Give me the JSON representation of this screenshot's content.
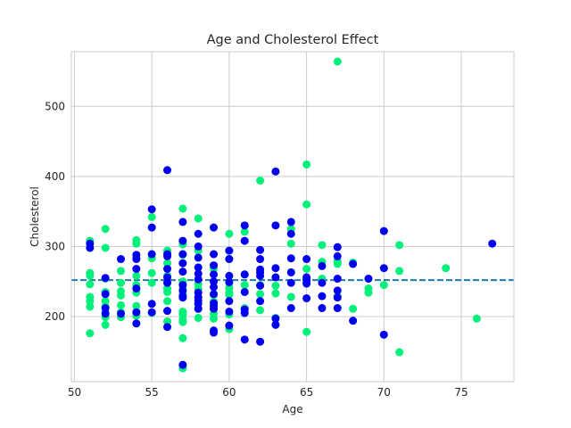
{
  "chart_data": {
    "type": "scatter",
    "title": "Age and Cholesterol Effect",
    "xlabel": "Age",
    "ylabel": "Cholesterol",
    "xlim": [
      49.8,
      78.4
    ],
    "ylim": [
      107,
      578
    ],
    "xticks": [
      50,
      55,
      60,
      65,
      70,
      75
    ],
    "yticks": [
      200,
      300,
      400,
      500
    ],
    "grid": true,
    "reference_line": {
      "y": 252,
      "color": "#1f77b4",
      "style": "dashed"
    },
    "colors": {
      "series_a": "#00f07a",
      "series_b": "#0000ee"
    },
    "series": [
      {
        "color": "#00f07a",
        "points": [
          [
            51,
            308
          ],
          [
            51,
            298
          ],
          [
            51,
            262
          ],
          [
            51,
            258
          ],
          [
            51,
            246
          ],
          [
            51,
            228
          ],
          [
            51,
            222
          ],
          [
            51,
            214
          ],
          [
            51,
            176
          ],
          [
            52,
            325
          ],
          [
            52,
            298
          ],
          [
            52,
            254
          ],
          [
            52,
            235
          ],
          [
            52,
            222
          ],
          [
            52,
            214
          ],
          [
            52,
            206
          ],
          [
            52,
            199
          ],
          [
            52,
            188
          ],
          [
            53,
            265
          ],
          [
            53,
            248
          ],
          [
            53,
            236
          ],
          [
            53,
            230
          ],
          [
            53,
            216
          ],
          [
            53,
            206
          ],
          [
            53,
            199
          ],
          [
            54,
            309
          ],
          [
            54,
            304
          ],
          [
            54,
            284
          ],
          [
            54,
            258
          ],
          [
            54,
            245
          ],
          [
            54,
            234
          ],
          [
            54,
            215
          ],
          [
            54,
            206
          ],
          [
            54,
            201
          ],
          [
            55,
            342
          ],
          [
            55,
            283
          ],
          [
            55,
            262
          ],
          [
            55,
            248
          ],
          [
            55,
            205
          ],
          [
            56,
            294
          ],
          [
            56,
            276
          ],
          [
            56,
            258
          ],
          [
            56,
            240
          ],
          [
            56,
            235
          ],
          [
            56,
            222
          ],
          [
            56,
            193
          ],
          [
            57,
            354
          ],
          [
            57,
            303
          ],
          [
            57,
            288
          ],
          [
            57,
            250
          ],
          [
            57,
            239
          ],
          [
            57,
            232
          ],
          [
            57,
            207
          ],
          [
            57,
            203
          ],
          [
            57,
            196
          ],
          [
            57,
            192
          ],
          [
            57,
            169
          ],
          [
            57,
            126
          ],
          [
            58,
            340
          ],
          [
            58,
            294
          ],
          [
            58,
            270
          ],
          [
            58,
            246
          ],
          [
            58,
            239
          ],
          [
            58,
            228
          ],
          [
            58,
            219
          ],
          [
            58,
            211
          ],
          [
            58,
            198
          ],
          [
            59,
            268
          ],
          [
            59,
            231
          ],
          [
            59,
            221
          ],
          [
            59,
            211
          ],
          [
            59,
            204
          ],
          [
            59,
            197
          ],
          [
            60,
            318
          ],
          [
            60,
            282
          ],
          [
            60,
            248
          ],
          [
            60,
            241
          ],
          [
            60,
            234
          ],
          [
            60,
            231
          ],
          [
            60,
            203
          ],
          [
            60,
            182
          ],
          [
            61,
            321
          ],
          [
            61,
            260
          ],
          [
            61,
            245
          ],
          [
            61,
            212
          ],
          [
            62,
            394
          ],
          [
            62,
            263
          ],
          [
            62,
            245
          ],
          [
            62,
            232
          ],
          [
            62,
            209
          ],
          [
            63,
            244
          ],
          [
            63,
            233
          ],
          [
            63,
            198
          ],
          [
            64,
            325
          ],
          [
            64,
            304
          ],
          [
            64,
            263
          ],
          [
            64,
            228
          ],
          [
            65,
            417
          ],
          [
            65,
            360
          ],
          [
            65,
            268
          ],
          [
            65,
            253
          ],
          [
            65,
            248
          ],
          [
            65,
            178
          ],
          [
            66,
            302
          ],
          [
            66,
            278
          ],
          [
            66,
            254
          ],
          [
            67,
            564
          ],
          [
            67,
            279
          ],
          [
            67,
            275
          ],
          [
            67,
            229
          ],
          [
            68,
            277
          ],
          [
            68,
            211
          ],
          [
            69,
            240
          ],
          [
            69,
            234
          ],
          [
            70,
            245
          ],
          [
            71,
            302
          ],
          [
            71,
            265
          ],
          [
            71,
            149
          ],
          [
            74,
            269
          ],
          [
            76,
            197
          ]
        ]
      },
      {
        "color": "#0000ee",
        "points": [
          [
            51,
            304
          ],
          [
            51,
            298
          ],
          [
            52,
            255
          ],
          [
            52,
            232
          ],
          [
            52,
            212
          ],
          [
            52,
            204
          ],
          [
            53,
            282
          ],
          [
            53,
            204
          ],
          [
            54,
            288
          ],
          [
            54,
            282
          ],
          [
            54,
            268
          ],
          [
            54,
            240
          ],
          [
            54,
            206
          ],
          [
            54,
            190
          ],
          [
            55,
            353
          ],
          [
            55,
            327
          ],
          [
            55,
            289
          ],
          [
            55,
            218
          ],
          [
            55,
            206
          ],
          [
            56,
            409
          ],
          [
            56,
            289
          ],
          [
            56,
            286
          ],
          [
            56,
            268
          ],
          [
            56,
            256
          ],
          [
            56,
            248
          ],
          [
            56,
            208
          ],
          [
            56,
            185
          ],
          [
            57,
            335
          ],
          [
            57,
            308
          ],
          [
            57,
            289
          ],
          [
            57,
            276
          ],
          [
            57,
            264
          ],
          [
            57,
            245
          ],
          [
            57,
            237
          ],
          [
            57,
            229
          ],
          [
            57,
            227
          ],
          [
            57,
            131
          ],
          [
            58,
            318
          ],
          [
            58,
            300
          ],
          [
            58,
            284
          ],
          [
            58,
            270
          ],
          [
            58,
            261
          ],
          [
            58,
            253
          ],
          [
            58,
            234
          ],
          [
            58,
            227
          ],
          [
            58,
            223
          ],
          [
            58,
            218
          ],
          [
            58,
            211
          ],
          [
            59,
            327
          ],
          [
            59,
            289
          ],
          [
            59,
            273
          ],
          [
            59,
            260
          ],
          [
            59,
            250
          ],
          [
            59,
            242
          ],
          [
            59,
            232
          ],
          [
            59,
            219
          ],
          [
            59,
            215
          ],
          [
            59,
            211
          ],
          [
            59,
            180
          ],
          [
            59,
            177
          ],
          [
            60,
            294
          ],
          [
            60,
            282
          ],
          [
            60,
            258
          ],
          [
            60,
            249
          ],
          [
            60,
            222
          ],
          [
            60,
            207
          ],
          [
            60,
            187
          ],
          [
            61,
            330
          ],
          [
            61,
            308
          ],
          [
            61,
            260
          ],
          [
            61,
            235
          ],
          [
            61,
            210
          ],
          [
            61,
            205
          ],
          [
            61,
            167
          ],
          [
            62,
            295
          ],
          [
            62,
            282
          ],
          [
            62,
            267
          ],
          [
            62,
            263
          ],
          [
            62,
            258
          ],
          [
            62,
            244
          ],
          [
            62,
            222
          ],
          [
            62,
            164
          ],
          [
            63,
            407
          ],
          [
            63,
            330
          ],
          [
            63,
            269
          ],
          [
            63,
            256
          ],
          [
            63,
            197
          ],
          [
            63,
            188
          ],
          [
            64,
            335
          ],
          [
            64,
            318
          ],
          [
            64,
            283
          ],
          [
            64,
            263
          ],
          [
            64,
            248
          ],
          [
            64,
            212
          ],
          [
            65,
            282
          ],
          [
            65,
            256
          ],
          [
            65,
            252
          ],
          [
            65,
            247
          ],
          [
            65,
            226
          ],
          [
            66,
            272
          ],
          [
            66,
            248
          ],
          [
            66,
            229
          ],
          [
            66,
            212
          ],
          [
            67,
            299
          ],
          [
            67,
            286
          ],
          [
            67,
            254
          ],
          [
            67,
            237
          ],
          [
            67,
            227
          ],
          [
            67,
            212
          ],
          [
            68,
            275
          ],
          [
            68,
            194
          ],
          [
            69,
            254
          ],
          [
            70,
            322
          ],
          [
            70,
            269
          ],
          [
            70,
            174
          ],
          [
            77,
            304
          ]
        ]
      }
    ]
  }
}
